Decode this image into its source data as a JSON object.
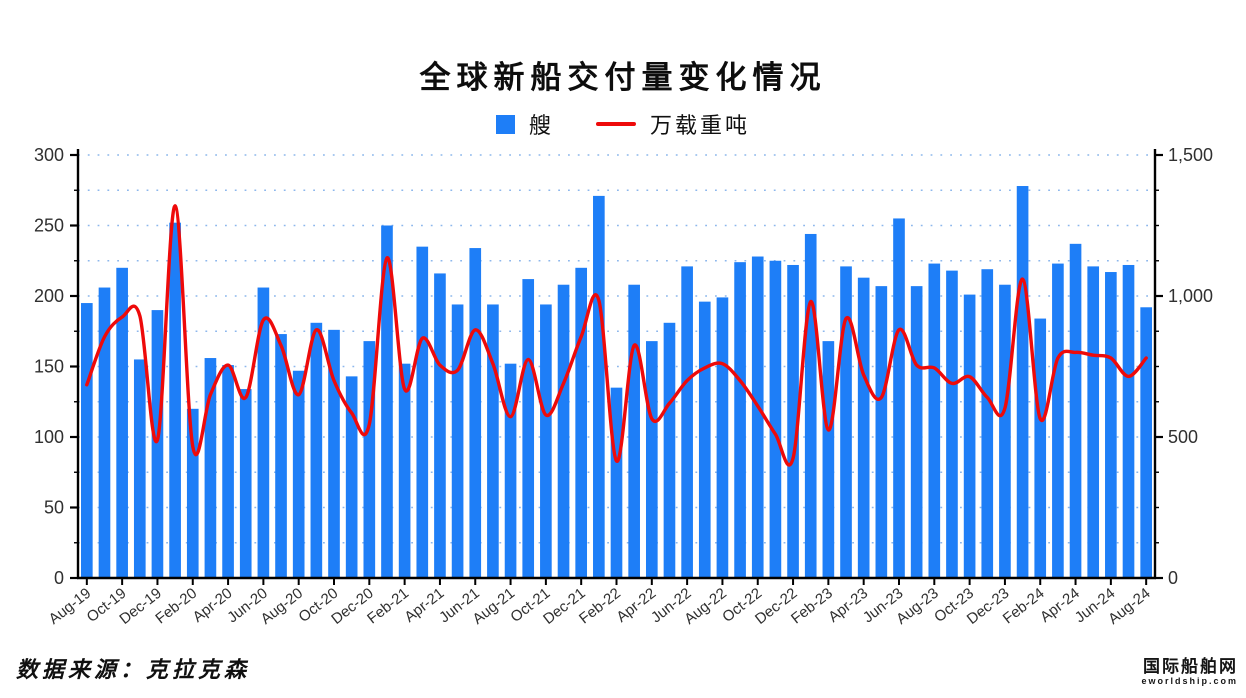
{
  "header": {
    "title": "全球新船交付量变化情况"
  },
  "legend": {
    "bars_label": "艘",
    "line_label": "万载重吨"
  },
  "footer": {
    "source": "数据来源：克拉克森"
  },
  "watermark": {
    "line1": "国际船舶网",
    "line2": "eworldship.com"
  },
  "chart_data": {
    "type": "bar",
    "title": "全球新船交付量变化情况",
    "categories": [
      "Aug-19",
      "Sep-19",
      "Oct-19",
      "Nov-19",
      "Dec-19",
      "Jan-20",
      "Feb-20",
      "Mar-20",
      "Apr-20",
      "May-20",
      "Jun-20",
      "Jul-20",
      "Aug-20",
      "Sep-20",
      "Oct-20",
      "Nov-20",
      "Dec-20",
      "Jan-21",
      "Feb-21",
      "Mar-21",
      "Apr-21",
      "May-21",
      "Jun-21",
      "Jul-21",
      "Aug-21",
      "Sep-21",
      "Oct-21",
      "Nov-21",
      "Dec-21",
      "Jan-22",
      "Feb-22",
      "Mar-22",
      "Apr-22",
      "May-22",
      "Jun-22",
      "Jul-22",
      "Aug-22",
      "Sep-22",
      "Oct-22",
      "Nov-22",
      "Dec-22",
      "Jan-23",
      "Feb-23",
      "Mar-23",
      "Apr-23",
      "May-23",
      "Jun-23",
      "Jul-23",
      "Aug-23",
      "Sep-23",
      "Oct-23",
      "Nov-23",
      "Dec-23",
      "Jan-24",
      "Feb-24",
      "Mar-24",
      "Apr-24",
      "May-24",
      "Jun-24",
      "Jul-24",
      "Aug-24"
    ],
    "x_tick_every": 2,
    "series": [
      {
        "name": "艘",
        "type": "bar",
        "axis": "left",
        "color": "#1e7ef7",
        "values": [
          195,
          206,
          220,
          155,
          190,
          252,
          120,
          156,
          151,
          134,
          206,
          173,
          147,
          181,
          176,
          143,
          168,
          250,
          152,
          235,
          216,
          194,
          234,
          194,
          152,
          212,
          194,
          208,
          220,
          271,
          135,
          208,
          168,
          181,
          221,
          196,
          199,
          224,
          228,
          225,
          222,
          244,
          168,
          221,
          213,
          207,
          255,
          207,
          223,
          218,
          201,
          219,
          208,
          278,
          184,
          223,
          237,
          221,
          217,
          222,
          192
        ]
      },
      {
        "name": "万载重吨",
        "type": "line",
        "axis": "right",
        "color": "#ee0a0a",
        "values": [
          685,
          855,
          925,
          930,
          490,
          1320,
          466,
          650,
          755,
          640,
          915,
          825,
          650,
          880,
          700,
          585,
          545,
          1135,
          670,
          850,
          755,
          737,
          880,
          760,
          572,
          775,
          578,
          690,
          856,
          985,
          415,
          825,
          565,
          620,
          700,
          745,
          760,
          700,
          610,
          510,
          425,
          980,
          525,
          920,
          720,
          640,
          880,
          755,
          745,
          690,
          714,
          640,
          602,
          1060,
          565,
          780,
          800,
          790,
          780,
          715,
          780
        ]
      }
    ],
    "left_axis": {
      "min": 0,
      "max": 300,
      "step": 50,
      "minor_step": 25,
      "labels": [
        "300",
        "250",
        "200",
        "150",
        "100",
        "50",
        "0"
      ]
    },
    "right_axis": {
      "min": 0,
      "max": 1500,
      "step": 500,
      "minor_step": 125,
      "labels": [
        "1,500",
        "1,000",
        "500",
        "0"
      ]
    },
    "grid": {
      "every": 25,
      "style": "dotted",
      "color": "#79aae9"
    },
    "axis_color": "#000000",
    "tick_label_color": "#303030",
    "legend_position": "top"
  }
}
